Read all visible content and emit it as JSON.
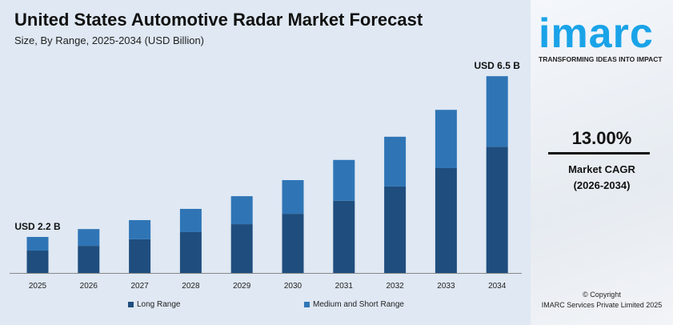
{
  "chart_data": {
    "type": "bar",
    "stacked": true,
    "title": "United States Automotive Radar Market Forecast",
    "subtitle": "Size, By Range, 2025-2034 (USD Billion)",
    "categories": [
      "2025",
      "2026",
      "2027",
      "2028",
      "2029",
      "2030",
      "2031",
      "2032",
      "2033",
      "2034"
    ],
    "series": [
      {
        "name": "Long Range",
        "color": "#1f4e7e",
        "values": [
          1.37,
          1.49,
          1.69,
          1.88,
          2.09,
          2.37,
          2.72,
          3.1,
          3.6,
          4.17
        ]
      },
      {
        "name": "Medium and Short Range",
        "color": "#2f75b6",
        "values": [
          0.83,
          0.92,
          0.96,
          1.07,
          1.2,
          1.35,
          1.54,
          1.78,
          2.0,
          2.33
        ]
      }
    ],
    "annotations": {
      "first": "USD 2.2 B",
      "last": "USD 6.5 B"
    },
    "legend": "bottom",
    "grid": false
  },
  "brand": {
    "logo": "imarc",
    "tagline": "TRANSFORMING IDEAS INTO IMPACT",
    "color": "#1aa3e8"
  },
  "cagr": {
    "value": "13.00%",
    "label": "Market CAGR",
    "period": "(2026-2034)"
  },
  "footer": {
    "copyright": "© Copyright",
    "company": "IMARC Services Private Limited 2025"
  }
}
